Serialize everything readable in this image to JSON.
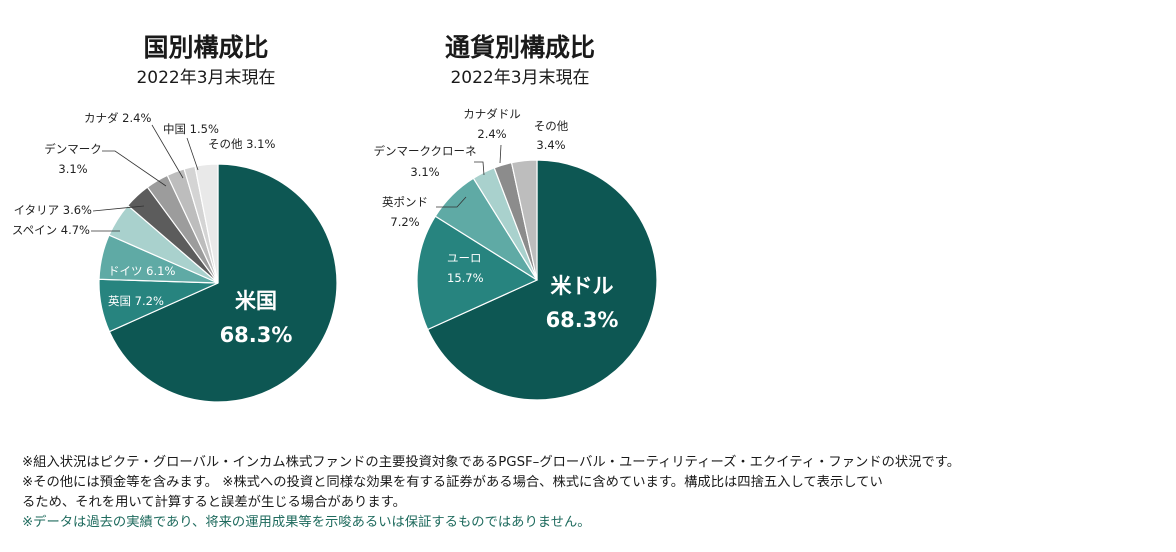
{
  "chart_data": [
    {
      "type": "pie",
      "title": "国別構成比",
      "subtitle": "2022年3月末現在",
      "slices": [
        {
          "label": "米国",
          "value": 68.3,
          "value_label": "68.3%",
          "color": "#0d5753"
        },
        {
          "label": "英国",
          "value": 7.2,
          "value_label": "7.2%",
          "color": "#27847f"
        },
        {
          "label": "ドイツ",
          "value": 6.1,
          "value_label": "6.1%",
          "color": "#5faaa5"
        },
        {
          "label": "スペイン",
          "value": 4.7,
          "value_label": "4.7%",
          "color": "#a9d1cd"
        },
        {
          "label": "イタリア",
          "value": 3.6,
          "value_label": "3.6%",
          "color": "#5c5c5c"
        },
        {
          "label": "デンマーク",
          "value": 3.1,
          "value_label": "3.1%",
          "color": "#9c9c9c"
        },
        {
          "label": "カナダ",
          "value": 2.4,
          "value_label": "2.4%",
          "color": "#bdbdbd"
        },
        {
          "label": "中国",
          "value": 1.5,
          "value_label": "1.5%",
          "color": "#d4d4d4"
        },
        {
          "label": "その他",
          "value": 3.1,
          "value_label": "3.1%",
          "color": "#e9e9e9"
        }
      ]
    },
    {
      "type": "pie",
      "title": "通貨別構成比",
      "subtitle": "2022年3月末現在",
      "slices": [
        {
          "label": "米ドル",
          "value": 68.3,
          "value_label": "68.3%",
          "color": "#0d5753"
        },
        {
          "label": "ユーロ",
          "value": 15.7,
          "value_label": "15.7%",
          "color": "#27847f"
        },
        {
          "label": "英ポンド",
          "value": 7.2,
          "value_label": "7.2%",
          "color": "#5faaa5"
        },
        {
          "label": "デンマーククローネ",
          "value": 3.1,
          "value_label": "3.1%",
          "color": "#a9d1cd"
        },
        {
          "label": "カナダドル",
          "value": 2.4,
          "value_label": "2.4%",
          "color": "#8c8c8c"
        },
        {
          "label": "その他",
          "value": 3.4,
          "value_label": "3.4%",
          "color": "#bdbdbd"
        }
      ]
    }
  ],
  "notes": [
    "※組入状況はピクテ・グローバル・インカム株式ファンドの主要投資対象であるPGSF–グローバル・ユーティリティーズ・エクイティ・ファンドの状況です。",
    "※その他には預金等を含みます。 ※株式への投資と同様な効果を有する証券がある場合、株式に含めています。構成比は四捨五入して表示してい",
    "るため、それを用いて計算すると誤差が生じる場合があります。",
    "※データは過去の実績であり、将来の運用成果等を示唆あるいは保証するものではありません。"
  ]
}
